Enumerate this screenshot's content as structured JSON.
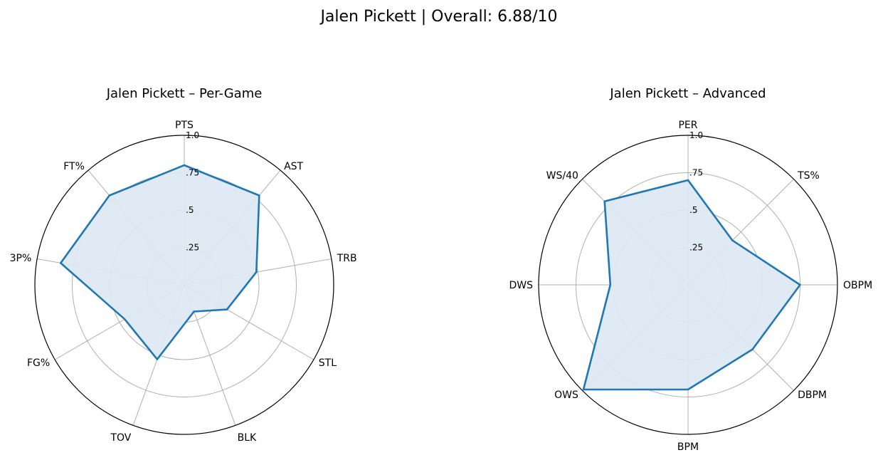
{
  "figure": {
    "title": "Jalen Pickett | Overall: 6.88/10"
  },
  "colors": {
    "series": "#1f77b4",
    "fill": "#dde9f3",
    "grid": "#b0b0b0",
    "spine": "#000000"
  },
  "chart_data": [
    {
      "type": "radar",
      "title": "Jalen Pickett – Per-Game",
      "categories": [
        "PTS",
        "AST",
        "TRB",
        "STL",
        "BLK",
        "TOV",
        "FG%",
        "3P%",
        "FT%"
      ],
      "values": [
        0.8,
        0.78,
        0.49,
        0.33,
        0.19,
        0.53,
        0.46,
        0.84,
        0.78
      ],
      "rlim": [
        0,
        1.0
      ],
      "rticks": [
        0.25,
        0.5,
        0.75,
        1.0
      ],
      "rtick_labels": [
        ".25",
        ".5",
        ".75",
        "1.0"
      ],
      "grid": true
    },
    {
      "type": "radar",
      "title": "Jalen Pickett – Advanced",
      "categories": [
        "PER",
        "TS%",
        "OBPM",
        "DBPM",
        "BPM",
        "OWS",
        "DWS",
        "WS/40"
      ],
      "values": [
        0.7,
        0.42,
        0.75,
        0.61,
        0.7,
        0.99,
        0.52,
        0.79
      ],
      "rlim": [
        0,
        1.0
      ],
      "rticks": [
        0.25,
        0.5,
        0.75,
        1.0
      ],
      "rtick_labels": [
        ".25",
        ".5",
        ".75",
        "1.0"
      ],
      "grid": true
    }
  ]
}
